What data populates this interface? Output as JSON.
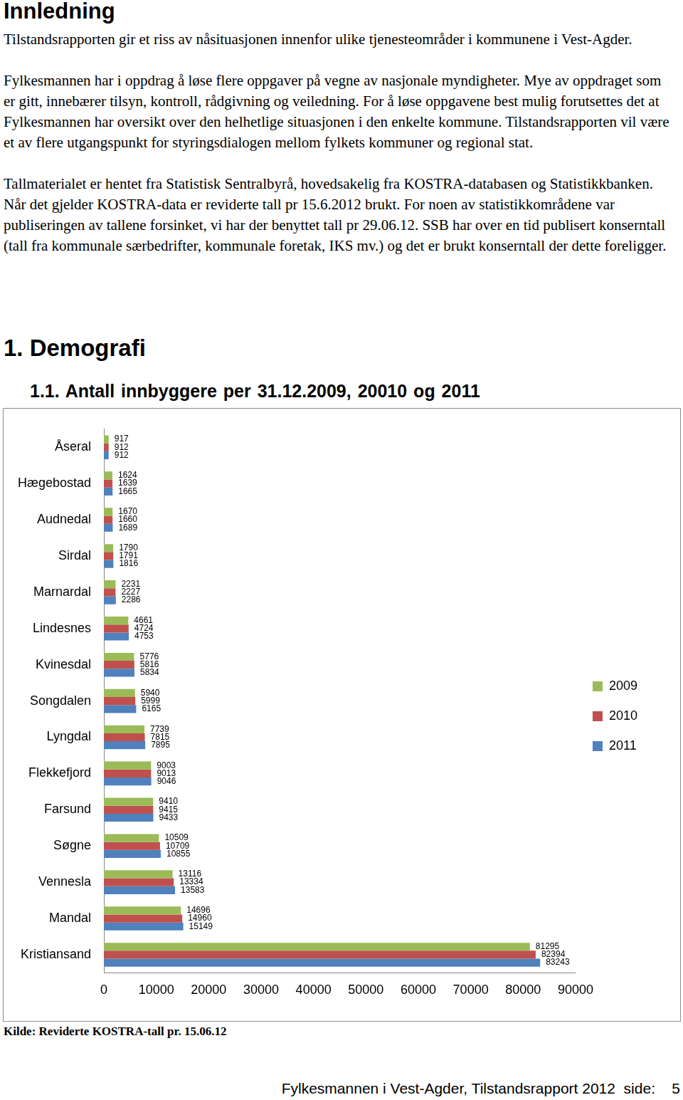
{
  "document": {
    "heading": "Innledning",
    "paragraphs": [
      "Tilstandsrapporten gir et riss av nåsituasjonen innenfor ulike tjenesteområder i kommunene i Vest-Agder.",
      "Fylkesmannen har i oppdrag å løse flere oppgaver på vegne av nasjonale myndigheter. Mye av oppdraget som er gitt, innebærer tilsyn, kontroll, rådgivning og veiledning. For å løse oppgavene best mulig forutsettes det at Fylkesmannen har oversikt over den helhetlige situasjonen i den enkelte kommune. Tilstandsrapporten vil være et av flere utgangspunkt for styringsdialogen mellom fylkets kommuner og regional stat.",
      "Tallmaterialet er hentet fra Statistisk Sentralbyrå, hovedsakelig fra KOSTRA-databasen og Statistikkbanken. Når det gjelder KOSTRA-data er reviderte tall pr 15.6.2012 brukt. For noen av statistikkområdene var publiseringen av tallene forsinket, vi har der benyttet tall pr 29.06.12. SSB har over en tid publisert konserntall (tall fra kommunale særbedrifter, kommunale foretak, IKS mv.) og det er brukt konserntall der dette foreligger."
    ],
    "section": "1. Demografi",
    "source": "Kilde: Reviderte KOSTRA-tall pr. 15.06.12",
    "footer": {
      "text": "Fylkesmannen i Vest-Agder, Tilstandsrapport 2012  side:",
      "page": "5"
    }
  },
  "chart_data": {
    "type": "bar",
    "title": "1.1.   Antall innbyggere per 31.12.2009, 20010 og 2011",
    "orientation": "horizontal",
    "categories": [
      "Åseral",
      "Hægebostad",
      "Audnedal",
      "Sirdal",
      "Marnardal",
      "Lindesnes",
      "Kvinesdal",
      "Songdalen",
      "Lyngdal",
      "Flekkefjord",
      "Farsund",
      "Søgne",
      "Vennesla",
      "Mandal",
      "Kristiansand"
    ],
    "series": [
      {
        "name": "2009",
        "color": "#9bbb59",
        "values": [
          917,
          1624,
          1670,
          1790,
          2231,
          4661,
          5776,
          5940,
          7739,
          9003,
          9410,
          10509,
          13116,
          14696,
          81295
        ]
      },
      {
        "name": "2010",
        "color": "#c0504d",
        "values": [
          912,
          1639,
          1660,
          1791,
          2227,
          4724,
          5816,
          5999,
          7815,
          9013,
          9415,
          10709,
          13334,
          14960,
          82394
        ]
      },
      {
        "name": "2011",
        "color": "#4f81bd",
        "values": [
          912,
          1665,
          1689,
          1816,
          2286,
          4753,
          5834,
          6165,
          7895,
          9046,
          9433,
          10855,
          13583,
          15149,
          83243
        ]
      }
    ],
    "xlim": [
      0,
      90000
    ],
    "xticks": [
      0,
      10000,
      20000,
      30000,
      40000,
      50000,
      60000,
      70000,
      80000,
      90000
    ],
    "grid": false,
    "legend": "right",
    "data_labels": true
  }
}
